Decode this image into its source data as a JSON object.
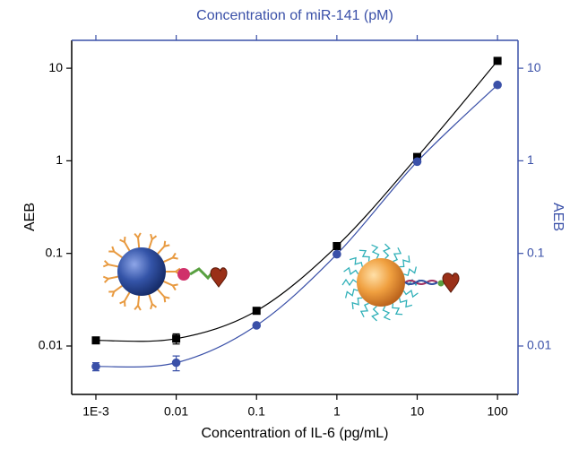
{
  "chart_data": {
    "type": "scatter",
    "xlabel": "Concentration of IL-6 (pg/mL)",
    "x2label": "Concentration of miR-141 (pM)",
    "ylabel": "AEB",
    "y2label": "AEB",
    "log_x": true,
    "log_y": true,
    "xlim": [
      0.0005,
      180
    ],
    "xticks": [
      {
        "value": 0.001,
        "label": "1E-3"
      },
      0.01,
      0.1,
      1,
      10,
      100
    ],
    "ylim": [
      0.003,
      20
    ],
    "yticks": [
      0.01,
      0.1,
      1,
      10
    ],
    "y2lim": [
      0.003,
      20
    ],
    "y2ticks": [
      0.01,
      0.1,
      1,
      10
    ],
    "axis_color": "#000000",
    "axis2_color": "#3a50a8",
    "x": [
      0.001,
      0.01,
      0.1,
      1,
      10,
      100
    ],
    "series": [
      {
        "color": "#000000",
        "marker": "square",
        "values": [
          0.0115,
          0.012,
          0.024,
          0.12,
          1.1,
          12
        ],
        "errors": [
          null,
          0.0015,
          null,
          null,
          null,
          null
        ]
      },
      {
        "color": "#3a50a8",
        "marker": "circle",
        "axis": "y2",
        "values": [
          0.006,
          0.0066,
          0.0167,
          0.098,
          0.98,
          6.6
        ],
        "errors": [
          0.0006,
          0.0012,
          null,
          null,
          null,
          null
        ]
      }
    ]
  }
}
